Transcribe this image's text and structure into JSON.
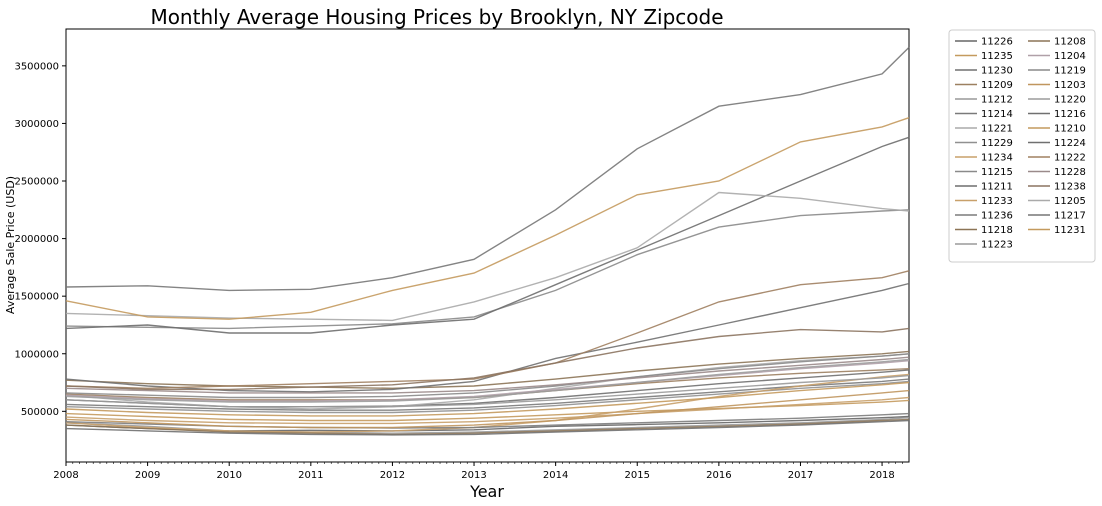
{
  "chart_data": {
    "type": "line",
    "title": "Monthly Average Housing Prices by Brooklyn, NY Zipcode",
    "xlabel": "Year",
    "ylabel": "Average Sale Price (USD)",
    "xlim": [
      2008.0,
      2018.33
    ],
    "ylim": [
      60000,
      3820000
    ],
    "xticks": [
      2008,
      2009,
      2010,
      2011,
      2012,
      2013,
      2014,
      2015,
      2016,
      2017,
      2018
    ],
    "yticks": [
      500000,
      1000000,
      1500000,
      2000000,
      2500000,
      3000000,
      3500000
    ],
    "grid": false,
    "legend_position": "outside-right",
    "series": [
      {
        "name": "11226",
        "color": "#666666",
        "x": [
          2008,
          2009,
          2010,
          2011,
          2012,
          2013,
          2014,
          2015,
          2016,
          2017,
          2018,
          2018.33
        ],
        "y": [
          380000,
          350000,
          330000,
          335000,
          330000,
          340000,
          370000,
          385000,
          400000,
          420000,
          445000,
          455000
        ]
      },
      {
        "name": "11235",
        "color": "#c49a5e",
        "x": [
          2008,
          2009,
          2010,
          2011,
          2012,
          2013,
          2014,
          2015,
          2016,
          2017,
          2018,
          2018.33
        ],
        "y": [
          480000,
          455000,
          430000,
          420000,
          420000,
          440000,
          470000,
          500000,
          525000,
          550000,
          580000,
          595000
        ]
      },
      {
        "name": "11230",
        "color": "#707070",
        "x": [
          2008,
          2009,
          2010,
          2011,
          2012,
          2013,
          2014,
          2015,
          2016,
          2017,
          2018,
          2018.33
        ],
        "y": [
          600000,
          570000,
          540000,
          540000,
          545000,
          570000,
          620000,
          680000,
          740000,
          790000,
          840000,
          860000
        ]
      },
      {
        "name": "11209",
        "color": "#9c8060",
        "x": [
          2008,
          2009,
          2010,
          2011,
          2012,
          2013,
          2014,
          2015,
          2016,
          2017,
          2018,
          2018.33
        ],
        "y": [
          650000,
          620000,
          600000,
          600000,
          600000,
          620000,
          680000,
          740000,
          790000,
          830000,
          860000,
          870000
        ]
      },
      {
        "name": "11212",
        "color": "#999999",
        "x": [
          2008,
          2009,
          2010,
          2011,
          2012,
          2013,
          2014,
          2015,
          2016,
          2017,
          2018,
          2018.33
        ],
        "y": [
          400000,
          370000,
          330000,
          320000,
          310000,
          320000,
          340000,
          360000,
          380000,
          400000,
          430000,
          445000
        ]
      },
      {
        "name": "11214",
        "color": "#7a7a7a",
        "x": [
          2008,
          2009,
          2010,
          2011,
          2012,
          2013,
          2014,
          2015,
          2016,
          2017,
          2018,
          2018.33
        ],
        "y": [
          560000,
          540000,
          520000,
          510000,
          510000,
          530000,
          570000,
          620000,
          670000,
          720000,
          760000,
          780000
        ]
      },
      {
        "name": "11221",
        "color": "#aaaaaa",
        "x": [
          2008,
          2009,
          2010,
          2011,
          2012,
          2013,
          2014,
          2015,
          2016,
          2017,
          2018,
          2018.33
        ],
        "y": [
          640000,
          580000,
          540000,
          520000,
          540000,
          600000,
          700000,
          800000,
          880000,
          940000,
          980000,
          1000000
        ]
      },
      {
        "name": "11229",
        "color": "#909090",
        "x": [
          2008,
          2009,
          2010,
          2011,
          2012,
          2013,
          2014,
          2015,
          2016,
          2017,
          2018,
          2018.33
        ],
        "y": [
          540000,
          520000,
          500000,
          490000,
          490000,
          510000,
          550000,
          600000,
          650000,
          700000,
          740000,
          760000
        ]
      },
      {
        "name": "11234",
        "color": "#c8a06a",
        "x": [
          2008,
          2009,
          2010,
          2011,
          2012,
          2013,
          2014,
          2015,
          2016,
          2017,
          2018,
          2018.33
        ],
        "y": [
          450000,
          420000,
          400000,
          395000,
          395000,
          410000,
          440000,
          480000,
          520000,
          560000,
          600000,
          620000
        ]
      },
      {
        "name": "11215",
        "color": "#8a8a8a",
        "x": [
          2008,
          2009,
          2010,
          2011,
          2012,
          2013,
          2014,
          2015,
          2016,
          2017,
          2018,
          2018.33
        ],
        "y": [
          1240000,
          1230000,
          1220000,
          1240000,
          1260000,
          1320000,
          1550000,
          1860000,
          2100000,
          2200000,
          2240000,
          2250000
        ]
      },
      {
        "name": "11211",
        "color": "#6e6e6e",
        "x": [
          2008,
          2009,
          2010,
          2011,
          2012,
          2013,
          2014,
          2015,
          2016,
          2017,
          2018,
          2018.33
        ],
        "y": [
          1220000,
          1250000,
          1180000,
          1180000,
          1250000,
          1300000,
          1600000,
          1900000,
          2200000,
          2500000,
          2800000,
          2880000
        ]
      },
      {
        "name": "11233",
        "color": "#c8a06a",
        "x": [
          2008,
          2009,
          2010,
          2011,
          2012,
          2013,
          2014,
          2015,
          2016,
          2017,
          2018,
          2018.33
        ],
        "y": [
          400000,
          360000,
          330000,
          320000,
          330000,
          360000,
          420000,
          520000,
          630000,
          720000,
          800000,
          820000
        ]
      },
      {
        "name": "11236",
        "color": "#7c7c7c",
        "x": [
          2008,
          2009,
          2010,
          2011,
          2012,
          2013,
          2014,
          2015,
          2016,
          2017,
          2018,
          2018.33
        ],
        "y": [
          410000,
          390000,
          370000,
          360000,
          355000,
          360000,
          380000,
          400000,
          420000,
          440000,
          470000,
          480000
        ]
      },
      {
        "name": "11218",
        "color": "#8c7456",
        "x": [
          2008,
          2009,
          2010,
          2011,
          2012,
          2013,
          2014,
          2015,
          2016,
          2017,
          2018,
          2018.33
        ],
        "y": [
          770000,
          740000,
          720000,
          710000,
          700000,
          720000,
          780000,
          850000,
          910000,
          960000,
          1000000,
          1020000
        ]
      },
      {
        "name": "11223",
        "color": "#9a9a9a",
        "x": [
          2008,
          2009,
          2010,
          2011,
          2012,
          2013,
          2014,
          2015,
          2016,
          2017,
          2018,
          2018.33
        ],
        "y": [
          600000,
          570000,
          540000,
          540000,
          540000,
          560000,
          600000,
          650000,
          700000,
          750000,
          790000,
          810000
        ]
      },
      {
        "name": "11208",
        "color": "#8c7456",
        "x": [
          2008,
          2009,
          2010,
          2011,
          2012,
          2013,
          2014,
          2015,
          2016,
          2017,
          2018,
          2018.33
        ],
        "y": [
          380000,
          350000,
          320000,
          310000,
          300000,
          310000,
          330000,
          350000,
          370000,
          390000,
          420000,
          430000
        ]
      },
      {
        "name": "11204",
        "color": "#b0a0a8",
        "x": [
          2008,
          2009,
          2010,
          2011,
          2012,
          2013,
          2014,
          2015,
          2016,
          2017,
          2018,
          2018.33
        ],
        "y": [
          640000,
          610000,
          590000,
          590000,
          600000,
          630000,
          690000,
          750000,
          810000,
          870000,
          920000,
          940000
        ]
      },
      {
        "name": "11219",
        "color": "#8a8a8a",
        "x": [
          2008,
          2009,
          2010,
          2011,
          2012,
          2013,
          2014,
          2015,
          2016,
          2017,
          2018,
          2018.33
        ],
        "y": [
          660000,
          640000,
          620000,
          620000,
          630000,
          660000,
          720000,
          800000,
          870000,
          930000,
          980000,
          1000000
        ]
      },
      {
        "name": "11203",
        "color": "#c0965e",
        "x": [
          2008,
          2009,
          2010,
          2011,
          2012,
          2013,
          2014,
          2015,
          2016,
          2017,
          2018,
          2018.33
        ],
        "y": [
          430000,
          400000,
          370000,
          360000,
          360000,
          380000,
          420000,
          480000,
          540000,
          600000,
          660000,
          680000
        ]
      },
      {
        "name": "11220",
        "color": "#9c9c9c",
        "x": [
          2008,
          2009,
          2010,
          2011,
          2012,
          2013,
          2014,
          2015,
          2016,
          2017,
          2018,
          2018.33
        ],
        "y": [
          630000,
          600000,
          580000,
          580000,
          590000,
          620000,
          680000,
          750000,
          820000,
          880000,
          930000,
          950000
        ]
      },
      {
        "name": "11216",
        "color": "#707070",
        "x": [
          2008,
          2009,
          2010,
          2011,
          2012,
          2013,
          2014,
          2015,
          2016,
          2017,
          2018,
          2018.33
        ],
        "y": [
          780000,
          720000,
          680000,
          670000,
          690000,
          760000,
          960000,
          1100000,
          1250000,
          1400000,
          1550000,
          1610000
        ]
      },
      {
        "name": "11210",
        "color": "#c49a5e",
        "x": [
          2008,
          2009,
          2010,
          2011,
          2012,
          2013,
          2014,
          2015,
          2016,
          2017,
          2018,
          2018.33
        ],
        "y": [
          520000,
          490000,
          470000,
          460000,
          460000,
          480000,
          520000,
          570000,
          620000,
          680000,
          730000,
          750000
        ]
      },
      {
        "name": "11224",
        "color": "#707070",
        "x": [
          2008,
          2009,
          2010,
          2011,
          2012,
          2013,
          2014,
          2015,
          2016,
          2017,
          2018,
          2018.33
        ],
        "y": [
          350000,
          330000,
          310000,
          300000,
          295000,
          300000,
          320000,
          340000,
          360000,
          380000,
          410000,
          420000
        ]
      },
      {
        "name": "11222",
        "color": "#a08060",
        "x": [
          2008,
          2009,
          2010,
          2011,
          2012,
          2013,
          2014,
          2015,
          2016,
          2017,
          2018,
          2018.33
        ],
        "y": [
          720000,
          700000,
          720000,
          740000,
          760000,
          780000,
          920000,
          1180000,
          1450000,
          1600000,
          1660000,
          1720000
        ]
      },
      {
        "name": "11228",
        "color": "#9a8a8a",
        "x": [
          2008,
          2009,
          2010,
          2011,
          2012,
          2013,
          2014,
          2015,
          2016,
          2017,
          2018,
          2018.33
        ],
        "y": [
          700000,
          680000,
          660000,
          660000,
          660000,
          680000,
          730000,
          790000,
          850000,
          900000,
          950000,
          970000
        ]
      },
      {
        "name": "11238",
        "color": "#8c7460",
        "x": [
          2008,
          2009,
          2010,
          2011,
          2012,
          2013,
          2014,
          2015,
          2016,
          2017,
          2018,
          2018.33
        ],
        "y": [
          720000,
          690000,
          690000,
          710000,
          730000,
          790000,
          920000,
          1050000,
          1150000,
          1210000,
          1190000,
          1220000
        ]
      },
      {
        "name": "11205",
        "color": "#aaaaaa",
        "x": [
          2008,
          2009,
          2010,
          2011,
          2012,
          2013,
          2014,
          2015,
          2016,
          2017,
          2018,
          2018.33
        ],
        "y": [
          1350000,
          1330000,
          1310000,
          1300000,
          1290000,
          1450000,
          1660000,
          1920000,
          2400000,
          2350000,
          2260000,
          2240000
        ]
      },
      {
        "name": "11217",
        "color": "#777777",
        "x": [
          2008,
          2009,
          2010,
          2011,
          2012,
          2013,
          2014,
          2015,
          2016,
          2017,
          2018,
          2018.33
        ],
        "y": [
          1580000,
          1590000,
          1550000,
          1560000,
          1660000,
          1820000,
          2250000,
          2780000,
          3150000,
          3250000,
          3430000,
          3660000
        ]
      },
      {
        "name": "11231",
        "color": "#c49a5e",
        "x": [
          2008,
          2009,
          2010,
          2011,
          2012,
          2013,
          2014,
          2015,
          2016,
          2017,
          2018,
          2018.33
        ],
        "y": [
          1460000,
          1320000,
          1300000,
          1360000,
          1550000,
          1700000,
          2030000,
          2380000,
          2500000,
          2840000,
          2970000,
          3050000
        ]
      }
    ]
  }
}
